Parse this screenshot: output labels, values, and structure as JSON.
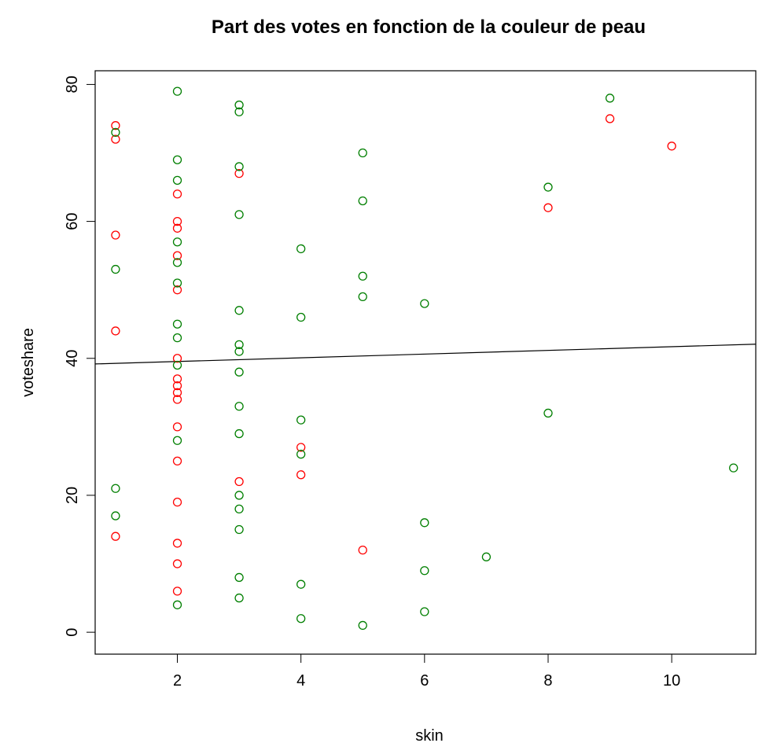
{
  "chart_data": {
    "type": "scatter",
    "title": "Part des votes en fonction de la couleur de peau",
    "xlabel": "skin",
    "ylabel": "voteshare",
    "xlim": [
      0.67,
      11.36
    ],
    "ylim": [
      -3.2,
      82.0
    ],
    "x_ticks": [
      "2",
      "4",
      "6",
      "8",
      "10"
    ],
    "y_ticks": [
      "0",
      "20",
      "40",
      "60",
      "80"
    ],
    "grid": false,
    "legend": "none",
    "colors": {
      "red": "#ff0000",
      "green": "#007f00",
      "line": "#000000"
    },
    "series": [
      {
        "color": "#ff0000",
        "points": [
          [
            1,
            74
          ],
          [
            1,
            72
          ],
          [
            1,
            58
          ],
          [
            1,
            44
          ],
          [
            1,
            14
          ],
          [
            2,
            64
          ],
          [
            2,
            60
          ],
          [
            2,
            59
          ],
          [
            2,
            55
          ],
          [
            2,
            50
          ],
          [
            2,
            40
          ],
          [
            2,
            37
          ],
          [
            2,
            36
          ],
          [
            2,
            35
          ],
          [
            2,
            34
          ],
          [
            2,
            30
          ],
          [
            2,
            25
          ],
          [
            2,
            19
          ],
          [
            2,
            13
          ],
          [
            2,
            10
          ],
          [
            2,
            6
          ],
          [
            3,
            67
          ],
          [
            3,
            22
          ],
          [
            4,
            27
          ],
          [
            4,
            23
          ],
          [
            5,
            12
          ],
          [
            8,
            62
          ],
          [
            9,
            75
          ],
          [
            10,
            71
          ]
        ]
      },
      {
        "color": "#007f00",
        "points": [
          [
            1,
            73
          ],
          [
            1,
            53
          ],
          [
            1,
            21
          ],
          [
            1,
            17
          ],
          [
            2,
            79
          ],
          [
            2,
            69
          ],
          [
            2,
            66
          ],
          [
            2,
            57
          ],
          [
            2,
            54
          ],
          [
            2,
            51
          ],
          [
            2,
            45
          ],
          [
            2,
            43
          ],
          [
            2,
            39
          ],
          [
            2,
            28
          ],
          [
            2,
            4
          ],
          [
            3,
            77
          ],
          [
            3,
            76
          ],
          [
            3,
            68
          ],
          [
            3,
            61
          ],
          [
            3,
            47
          ],
          [
            3,
            42
          ],
          [
            3,
            41
          ],
          [
            3,
            38
          ],
          [
            3,
            33
          ],
          [
            3,
            29
          ],
          [
            3,
            20
          ],
          [
            3,
            18
          ],
          [
            3,
            15
          ],
          [
            3,
            8
          ],
          [
            3,
            5
          ],
          [
            4,
            56
          ],
          [
            4,
            46
          ],
          [
            4,
            31
          ],
          [
            4,
            26
          ],
          [
            4,
            7
          ],
          [
            4,
            2
          ],
          [
            5,
            70
          ],
          [
            5,
            63
          ],
          [
            5,
            52
          ],
          [
            5,
            49
          ],
          [
            5,
            1
          ],
          [
            6,
            48
          ],
          [
            6,
            16
          ],
          [
            6,
            9
          ],
          [
            6,
            3
          ],
          [
            7,
            11
          ],
          [
            8,
            65
          ],
          [
            8,
            32
          ],
          [
            9,
            78
          ],
          [
            11,
            24
          ]
        ]
      }
    ],
    "regression_line": {
      "intercept": 39.0,
      "slope": 0.27
    }
  }
}
